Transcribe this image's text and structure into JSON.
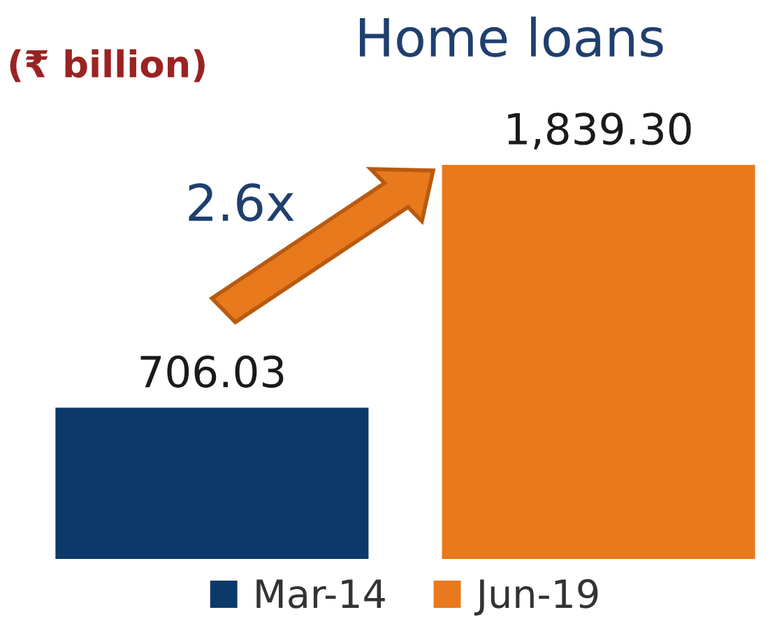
{
  "chart_data": {
    "type": "bar",
    "title": "Home loans",
    "subtitle": "(₹ billion)",
    "categories": [
      null
    ],
    "series": [
      {
        "name": "Mar-14",
        "color": "#0b3a6a",
        "values": [
          706.03
        ],
        "value_labels": [
          "706.03"
        ]
      },
      {
        "name": "Jun-19",
        "color": "#e8791c",
        "values": [
          1839.3
        ],
        "value_labels": [
          "1,839.30"
        ]
      }
    ],
    "annotations": [
      "2.6x"
    ],
    "legend": "bottom",
    "grid": false
  }
}
